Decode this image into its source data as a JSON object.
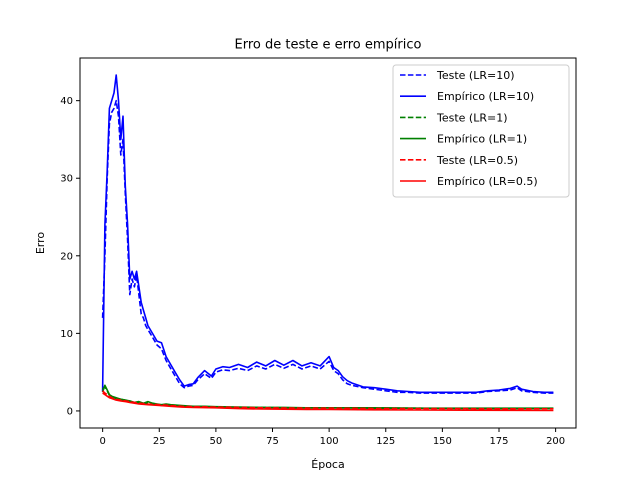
{
  "chart_data": {
    "type": "line",
    "title": "Erro de teste e erro empírico",
    "xlabel": "Época",
    "ylabel": "Erro",
    "xlim": [
      -10,
      209
    ],
    "ylim": [
      -2.2,
      45.5
    ],
    "xticks": [
      0,
      25,
      50,
      75,
      100,
      125,
      150,
      175,
      200
    ],
    "yticks": [
      0,
      10,
      20,
      30,
      40
    ],
    "grid": false,
    "legend_position": "top-right",
    "series": [
      {
        "name": "Teste (LR=10)",
        "color": "#0000ff",
        "dash": "dashed",
        "x": [
          0,
          1,
          2,
          3,
          4,
          5,
          6,
          7,
          8,
          9,
          10,
          11,
          12,
          13,
          14,
          15,
          16,
          17,
          18,
          19,
          20,
          22,
          24,
          26,
          28,
          30,
          32,
          34,
          36,
          38,
          40,
          42,
          45,
          48,
          50,
          53,
          56,
          60,
          64,
          68,
          72,
          76,
          80,
          84,
          88,
          92,
          96,
          100,
          102,
          104,
          106,
          108,
          110,
          115,
          120,
          125,
          130,
          135,
          140,
          150,
          160,
          165,
          170,
          175,
          180,
          183,
          185,
          190,
          195,
          199
        ],
        "y": [
          12,
          20,
          30,
          37,
          38.5,
          39,
          40,
          38,
          33,
          35,
          28,
          22,
          15,
          17,
          16,
          17.5,
          15,
          12.5,
          12,
          11,
          10.5,
          9.5,
          8.5,
          8,
          6.5,
          5.5,
          4.5,
          3.5,
          3,
          3.2,
          3.3,
          4,
          4.8,
          4.2,
          5,
          5.3,
          5.2,
          5.5,
          5.2,
          5.8,
          5.4,
          6,
          5.5,
          6,
          5.4,
          5.8,
          5.4,
          6.4,
          5.2,
          4.8,
          4,
          3.5,
          3.3,
          3,
          2.8,
          2.6,
          2.4,
          2.4,
          2.3,
          2.3,
          2.3,
          2.3,
          2.5,
          2.6,
          2.7,
          3,
          2.6,
          2.4,
          2.3,
          2.3
        ]
      },
      {
        "name": "Empírico (LR=10)",
        "color": "#0000ff",
        "dash": "solid",
        "x": [
          0,
          1,
          2,
          3,
          4,
          5,
          6,
          7,
          8,
          9,
          10,
          11,
          12,
          13,
          14,
          15,
          16,
          17,
          18,
          19,
          20,
          22,
          24,
          26,
          28,
          30,
          32,
          34,
          36,
          38,
          40,
          42,
          45,
          48,
          50,
          53,
          56,
          60,
          64,
          68,
          72,
          76,
          80,
          84,
          88,
          92,
          96,
          100,
          102,
          104,
          106,
          108,
          110,
          115,
          120,
          125,
          130,
          135,
          140,
          150,
          160,
          165,
          170,
          175,
          180,
          183,
          185,
          190,
          195,
          199
        ],
        "y": [
          2.5,
          24,
          31,
          39,
          40,
          41,
          43.3,
          40,
          35,
          38,
          29,
          24,
          17,
          18,
          17,
          18,
          16,
          14,
          13,
          12,
          11,
          10,
          9,
          8.8,
          7,
          6,
          5,
          4,
          3.2,
          3.4,
          3.5,
          4.3,
          5.2,
          4.5,
          5.4,
          5.7,
          5.6,
          6,
          5.6,
          6.3,
          5.8,
          6.5,
          5.9,
          6.5,
          5.8,
          6.2,
          5.8,
          7,
          5.6,
          5.2,
          4.4,
          3.9,
          3.6,
          3.1,
          3,
          2.8,
          2.6,
          2.5,
          2.4,
          2.4,
          2.4,
          2.4,
          2.6,
          2.7,
          2.9,
          3.2,
          2.8,
          2.5,
          2.4,
          2.4
        ]
      },
      {
        "name": "Teste (LR=1)",
        "color": "#008000",
        "dash": "dashed",
        "x": [
          0,
          1,
          2,
          3,
          4,
          6,
          8,
          10,
          12,
          14,
          16,
          18,
          20,
          22,
          24,
          26,
          28,
          30,
          35,
          40,
          45,
          50,
          60,
          70,
          80,
          90,
          100,
          120,
          140,
          160,
          180,
          199
        ],
        "y": [
          2.8,
          3.1,
          2.6,
          2.0,
          1.8,
          1.6,
          1.5,
          1.4,
          1.2,
          1.0,
          1.0,
          0.95,
          1.0,
          0.9,
          0.8,
          0.7,
          0.8,
          0.7,
          0.6,
          0.5,
          0.55,
          0.5,
          0.45,
          0.45,
          0.4,
          0.4,
          0.4,
          0.35,
          0.35,
          0.3,
          0.3,
          0.3
        ]
      },
      {
        "name": "Empírico (LR=1)",
        "color": "#008000",
        "dash": "solid",
        "x": [
          0,
          1,
          2,
          3,
          4,
          6,
          8,
          10,
          12,
          14,
          16,
          18,
          20,
          22,
          24,
          26,
          28,
          30,
          35,
          40,
          45,
          50,
          60,
          70,
          80,
          90,
          100,
          120,
          140,
          160,
          180,
          199
        ],
        "y": [
          2.4,
          3.3,
          2.7,
          2.1,
          1.9,
          1.7,
          1.5,
          1.4,
          1.3,
          1.1,
          1.2,
          1.0,
          1.2,
          1.0,
          0.9,
          0.8,
          0.9,
          0.8,
          0.7,
          0.6,
          0.6,
          0.55,
          0.5,
          0.45,
          0.45,
          0.4,
          0.4,
          0.4,
          0.35,
          0.35,
          0.35,
          0.35
        ]
      },
      {
        "name": "Teste (LR=0.5)",
        "color": "#ff0000",
        "dash": "dashed",
        "x": [
          0,
          1,
          2,
          3,
          4,
          6,
          8,
          10,
          12,
          14,
          16,
          18,
          20,
          25,
          30,
          35,
          40,
          50,
          60,
          70,
          80,
          90,
          100,
          120,
          140,
          160,
          180,
          199
        ],
        "y": [
          2.6,
          2.3,
          2.1,
          1.9,
          1.7,
          1.5,
          1.4,
          1.3,
          1.2,
          1.1,
          1.0,
          0.95,
          0.9,
          0.8,
          0.7,
          0.6,
          0.55,
          0.5,
          0.45,
          0.4,
          0.38,
          0.36,
          0.35,
          0.32,
          0.3,
          0.3,
          0.28,
          0.28
        ]
      },
      {
        "name": "Empírico (LR=0.5)",
        "color": "#ff0000",
        "dash": "solid",
        "x": [
          0,
          1,
          2,
          3,
          4,
          6,
          8,
          10,
          12,
          14,
          16,
          18,
          20,
          25,
          30,
          35,
          40,
          50,
          60,
          70,
          80,
          90,
          100,
          120,
          140,
          160,
          180,
          199
        ],
        "y": [
          2.3,
          2.1,
          1.9,
          1.7,
          1.6,
          1.4,
          1.3,
          1.2,
          1.1,
          1.0,
          0.9,
          0.85,
          0.8,
          0.7,
          0.6,
          0.5,
          0.45,
          0.4,
          0.3,
          0.25,
          0.22,
          0.2,
          0.18,
          0.15,
          0.12,
          0.1,
          0.08,
          0.05
        ]
      }
    ]
  }
}
